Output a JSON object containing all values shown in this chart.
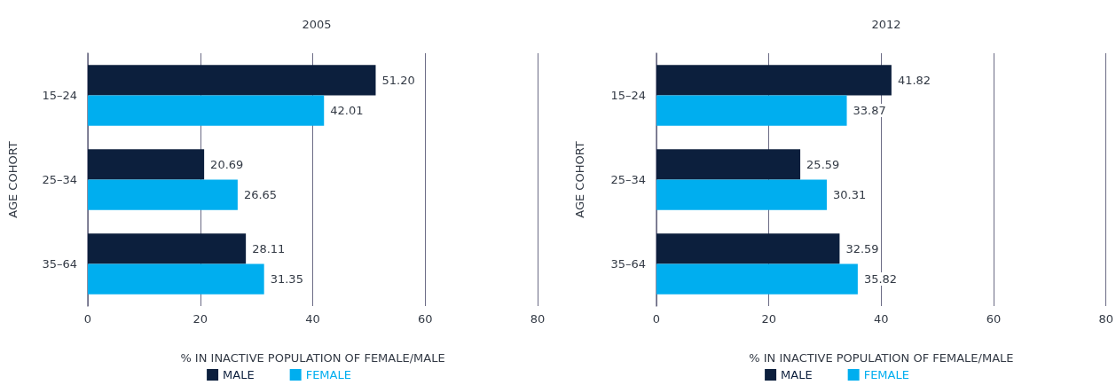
{
  "chart_data": [
    {
      "type": "bar",
      "orientation": "horizontal",
      "title": "2005",
      "xlabel": "% IN INACTIVE POPULATION OF FEMALE/MALE",
      "ylabel": "AGE COHORT",
      "categories": [
        "15–24",
        "25–34",
        "35–64"
      ],
      "series": [
        {
          "name": "MALE",
          "color": "#0c1f3d",
          "values": [
            51.2,
            20.69,
            28.11
          ],
          "value_labels": [
            "51.20",
            "20.69",
            "28.11"
          ]
        },
        {
          "name": "FEMALE",
          "color": "#00aeef",
          "values": [
            42.01,
            26.65,
            31.35
          ],
          "value_labels": [
            "42.01",
            "26.65",
            "31.35"
          ]
        }
      ],
      "xlim": [
        0,
        80
      ],
      "xticks": [
        0,
        20,
        40,
        60,
        80
      ],
      "grid": "x",
      "legend": "bottom"
    },
    {
      "type": "bar",
      "orientation": "horizontal",
      "title": "2012",
      "xlabel": "% IN INACTIVE POPULATION OF FEMALE/MALE",
      "ylabel": "AGE COHORT",
      "categories": [
        "15–24",
        "25–34",
        "35–64"
      ],
      "series": [
        {
          "name": "MALE",
          "color": "#0c1f3d",
          "values": [
            41.82,
            25.59,
            32.59
          ],
          "value_labels": [
            "41.82",
            "25.59",
            "32.59"
          ]
        },
        {
          "name": "FEMALE",
          "color": "#00aeef",
          "values": [
            33.87,
            30.31,
            35.82
          ],
          "value_labels": [
            "33.87",
            "30.31",
            "35.82"
          ]
        }
      ],
      "xlim": [
        0,
        80
      ],
      "xticks": [
        0,
        20,
        40,
        60,
        80
      ],
      "grid": "x",
      "legend": "bottom"
    }
  ]
}
